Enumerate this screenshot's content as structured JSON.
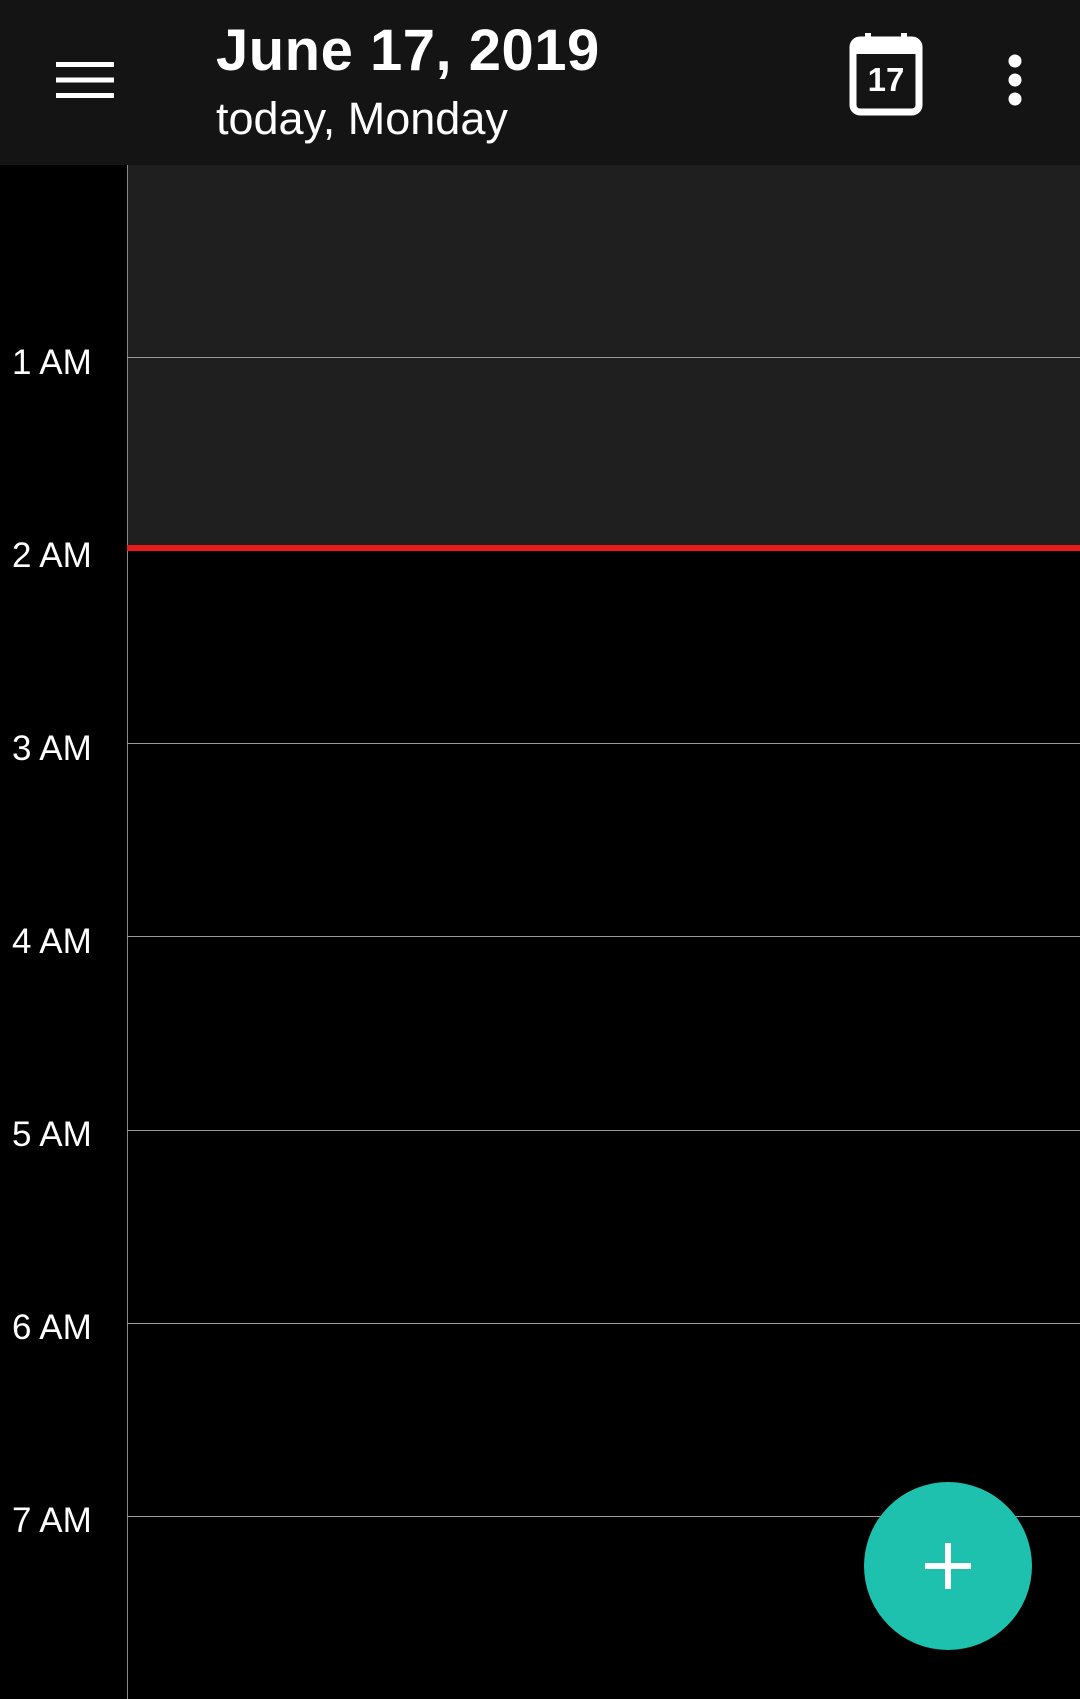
{
  "appbar": {
    "title": "June 17, 2019",
    "subtitle": "today, Monday",
    "today_button_day": "17",
    "icons": {
      "menu": "hamburger-menu-icon",
      "today": "calendar-today-icon",
      "more": "more-vertical-icon"
    }
  },
  "day_view": {
    "hours": [
      "1 AM",
      "2 AM",
      "3 AM",
      "4 AM",
      "5 AM",
      "6 AM",
      "7 AM"
    ],
    "current_time_indicator": true
  },
  "fab": {
    "icon": "plus-icon"
  },
  "colors": {
    "background": "#000000",
    "appbar": "#141414",
    "past_shade": "#1f1f1f",
    "now_line": "#e81b1b",
    "fab": "#1ec1ad",
    "grid_line": "#9a9a9a"
  }
}
